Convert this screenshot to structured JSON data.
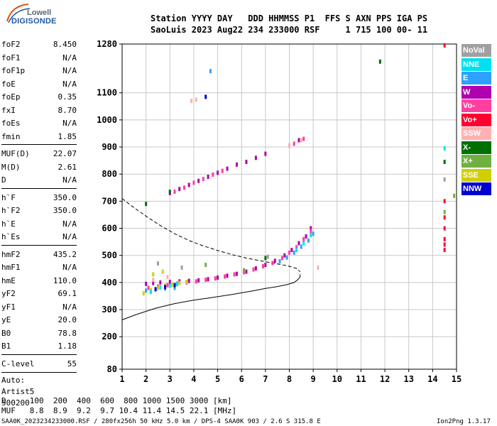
{
  "logo": {
    "brand_top": "Lowell",
    "brand_bottom": "DIGISONDE"
  },
  "header": {
    "columns_line": "Station YYYY DAY   DDD HHMMSS P1  FFS S AXN PPS IGA PS",
    "values_line": "SaoLuis 2023 Aug22 234 233000 RSF     1 715 100 00- 11"
  },
  "params": {
    "group1": [
      {
        "name": "foF2",
        "value": "8.450"
      },
      {
        "name": "foF1",
        "value": "N/A"
      },
      {
        "name": "foF1p",
        "value": "N/A"
      },
      {
        "name": "foE",
        "value": "N/A"
      },
      {
        "name": "foEp",
        "value": "0.35"
      },
      {
        "name": "fxI",
        "value": "8.70"
      },
      {
        "name": "foEs",
        "value": "N/A"
      },
      {
        "name": "fmin",
        "value": "1.85"
      }
    ],
    "group2": [
      {
        "name": "MUF(D)",
        "value": "22.07"
      },
      {
        "name": "M(D)",
        "value": "2.61"
      },
      {
        "name": "D",
        "value": "N/A"
      }
    ],
    "group3": [
      {
        "name": "h`F",
        "value": "350.0"
      },
      {
        "name": "h`F2",
        "value": "350.0"
      },
      {
        "name": "h`E",
        "value": "N/A"
      },
      {
        "name": "h`Es",
        "value": "N/A"
      }
    ],
    "group4": [
      {
        "name": "hmF2",
        "value": "435.2"
      },
      {
        "name": "hmF1",
        "value": "N/A"
      },
      {
        "name": "hmE",
        "value": "110.0"
      },
      {
        "name": "yF2",
        "value": "69.1"
      },
      {
        "name": "yF1",
        "value": "N/A"
      },
      {
        "name": "yE",
        "value": "20.0"
      },
      {
        "name": "B0",
        "value": "78.8"
      },
      {
        "name": "B1",
        "value": "1.18"
      }
    ],
    "clevel": {
      "name": "C-level",
      "value": "55"
    },
    "auto_lines": [
      "Auto:",
      "Artist5",
      "500200"
    ]
  },
  "legend": [
    {
      "label": "NoVal",
      "color": "#a0a0a0"
    },
    {
      "label": "NNE",
      "color": "#00e0f0"
    },
    {
      "label": "E",
      "color": "#30a0ff"
    },
    {
      "label": "W",
      "color": "#b000b0"
    },
    {
      "label": "Vo-",
      "color": "#ff40a0"
    },
    {
      "label": "Vo+",
      "color": "#ff0030"
    },
    {
      "label": "SSW",
      "color": "#ffb0b0"
    },
    {
      "label": "X-",
      "color": "#007000"
    },
    {
      "label": "X+",
      "color": "#70b040"
    },
    {
      "label": "SSE",
      "color": "#d0d000"
    },
    {
      "label": "NNW",
      "color": "#0000d0"
    }
  ],
  "footer": {
    "d_line": "D     100  200  400  600  800 1000 1500 3000 [km]",
    "muf_line": "MUF   8.8  8.9  9.2  9.7 10.4 11.4 14.5 22.1 [MHz]",
    "file_line": "SAA0K_2023234233000.RSF / 280fx256h 50 kHz 5.0 km / DPS-4 SAA0K 903 / 2.6 S 315.8 E",
    "version": "Ion2Png 1.3.17"
  },
  "chart_data": {
    "type": "scatter",
    "xlim": [
      1,
      15
    ],
    "ylim": [
      80,
      1280
    ],
    "x_ticks": [
      1,
      2,
      3,
      4,
      5,
      6,
      7,
      8,
      9,
      10,
      11,
      12,
      13,
      14,
      15
    ],
    "y_ticks": [
      80,
      200,
      300,
      400,
      500,
      600,
      700,
      800,
      900,
      1000,
      1100,
      1280
    ],
    "grid": true,
    "legend_position": "right",
    "series": [
      {
        "name": "W",
        "color": "#b000b0",
        "x": [
          2.0,
          2.3,
          2.6,
          3.0,
          3.4,
          3.8,
          4.2,
          4.6,
          5.0,
          5.4,
          5.8,
          6.2,
          6.6,
          7.0,
          7.4,
          7.8,
          8.1,
          8.4,
          8.7,
          8.9,
          3.0,
          3.4,
          3.8,
          4.2,
          4.6,
          5.0,
          5.4,
          5.8,
          6.2,
          6.6,
          7.0,
          8.0,
          8.4
        ],
        "y": [
          395,
          398,
          400,
          402,
          404,
          406,
          408,
          412,
          418,
          425,
          432,
          440,
          452,
          465,
          480,
          500,
          520,
          545,
          570,
          600,
          730,
          745,
          760,
          775,
          790,
          805,
          820,
          835,
          845,
          860,
          875,
          905,
          925
        ]
      },
      {
        "name": "Vo-",
        "color": "#ff40a0",
        "x": [
          2.1,
          2.5,
          2.9,
          3.3,
          3.7,
          4.1,
          4.5,
          4.9,
          5.3,
          5.7,
          6.1,
          6.5,
          6.9,
          7.3,
          7.7,
          8.0,
          8.3,
          8.6,
          8.9,
          3.2,
          3.6,
          4.0,
          4.4,
          4.8,
          5.2,
          8.2,
          8.6
        ],
        "y": [
          380,
          385,
          390,
          396,
          400,
          404,
          410,
          415,
          422,
          430,
          438,
          448,
          460,
          472,
          490,
          510,
          530,
          560,
          590,
          735,
          750,
          768,
          782,
          798,
          812,
          912,
          930
        ]
      },
      {
        "name": "E",
        "color": "#30a0ff",
        "x": [
          2.0,
          2.4,
          2.8,
          3.2,
          7.6,
          7.9,
          8.2,
          8.5,
          8.8,
          9.0,
          4.7
        ],
        "y": [
          370,
          375,
          378,
          380,
          478,
          492,
          510,
          532,
          555,
          580,
          1180
        ]
      },
      {
        "name": "SSE",
        "color": "#d0d000",
        "x": [
          1.9,
          2.2,
          2.5,
          2.8,
          3.1,
          3.4,
          3.7,
          2.3,
          2.7
        ],
        "y": [
          360,
          372,
          380,
          388,
          392,
          398,
          402,
          430,
          440
        ]
      },
      {
        "name": "NNE",
        "color": "#00e0f0",
        "x": [
          2.2,
          2.6,
          3.0,
          3.3,
          8.3,
          8.6,
          8.9,
          14.5
        ],
        "y": [
          365,
          382,
          388,
          394,
          520,
          545,
          575,
          895
        ]
      },
      {
        "name": "NNW",
        "color": "#0000d0",
        "x": [
          2.4,
          2.8,
          3.2,
          4.5
        ],
        "y": [
          375,
          383,
          390,
          1085
        ]
      },
      {
        "name": "SSW",
        "color": "#ffb0b0",
        "x": [
          2.3,
          2.9,
          8.0,
          8.5,
          9.2,
          3.9,
          4.1
        ],
        "y": [
          410,
          420,
          905,
          925,
          455,
          1070,
          1075
        ]
      },
      {
        "name": "Vo+",
        "color": "#ff0030",
        "x": [
          14.5,
          14.5,
          14.5,
          14.5,
          14.5,
          14.5,
          14.5
        ],
        "y": [
          520,
          540,
          560,
          600,
          640,
          700,
          1275
        ]
      },
      {
        "name": "X-",
        "color": "#007000",
        "x": [
          2.0,
          3.0,
          7.0,
          11.8,
          14.5
        ],
        "y": [
          690,
          735,
          490,
          1215,
          845
        ]
      },
      {
        "name": "X+",
        "color": "#70b040",
        "x": [
          4.5,
          6.1,
          14.5,
          14.9
        ],
        "y": [
          465,
          445,
          660,
          720
        ]
      },
      {
        "name": "NoVal",
        "color": "#a0a0a0",
        "x": [
          2.5,
          3.5,
          7.1,
          14.5
        ],
        "y": [
          470,
          455,
          495,
          780
        ]
      }
    ],
    "curves": [
      {
        "name": "solid",
        "style": "solid",
        "x": [
          1.0,
          1.6,
          2.4,
          3.2,
          4.0,
          4.8,
          5.6,
          6.4,
          7.0,
          7.5,
          7.9,
          8.2,
          8.35,
          8.45,
          8.45
        ],
        "y": [
          262,
          282,
          305,
          322,
          335,
          345,
          356,
          368,
          378,
          385,
          392,
          400,
          410,
          420,
          430
        ]
      },
      {
        "name": "dashed",
        "style": "dashed",
        "x": [
          1.0,
          1.4,
          2.0,
          2.6,
          3.2,
          3.8,
          4.4,
          5.0,
          5.6,
          6.2,
          6.8,
          7.4,
          7.9,
          8.3,
          8.45
        ],
        "y": [
          710,
          682,
          645,
          610,
          580,
          555,
          535,
          518,
          503,
          490,
          480,
          470,
          462,
          452,
          440
        ]
      }
    ]
  }
}
